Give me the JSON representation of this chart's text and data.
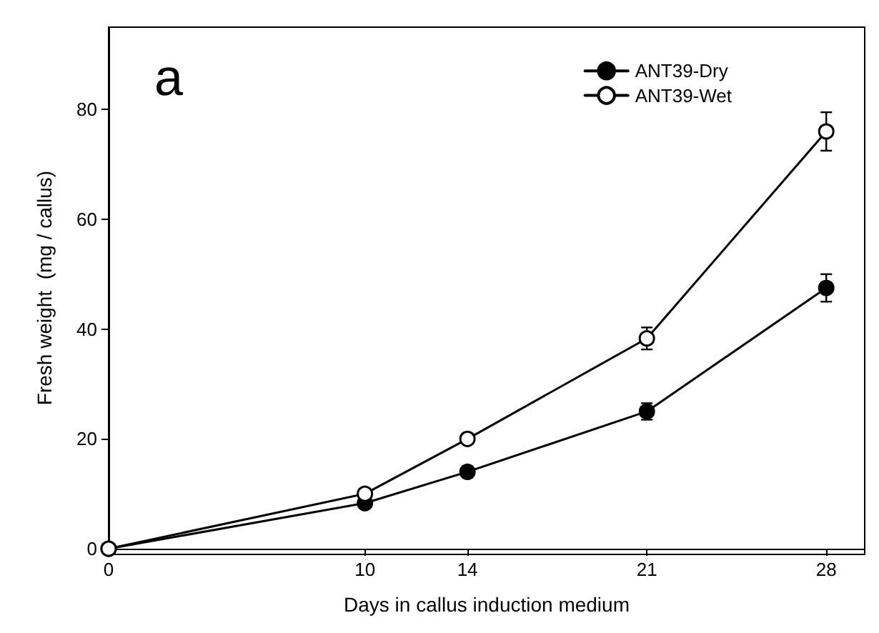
{
  "chart_data": {
    "type": "line",
    "xlabel": "Days in callus induction medium",
    "ylabel": "Fresh weight  (mg / callus)",
    "annotations": [
      "a"
    ],
    "x": [
      0,
      10,
      14,
      21,
      28
    ],
    "series": [
      {
        "name": "ANT39-Dry",
        "color": "#000000",
        "values": [
          0,
          8.3,
          14,
          25,
          47.5
        ],
        "errors": [
          null,
          null,
          1,
          1.5,
          2.5
        ],
        "marker": "circle"
      },
      {
        "name": "ANT39-Wet",
        "color": "#000000",
        "values": [
          0,
          10,
          20,
          38.3,
          76
        ],
        "errors": [
          null,
          null,
          null,
          2,
          3.5
        ],
        "marker": "circle-open"
      }
    ],
    "xlim": [
      0,
      29.5
    ],
    "xticks": [
      0,
      10,
      14,
      21,
      28
    ],
    "ylim": [
      0,
      95
    ],
    "yticks": [
      0,
      20,
      40,
      60,
      80
    ],
    "legend": "top right",
    "grid": false,
    "line_style": "solid"
  }
}
